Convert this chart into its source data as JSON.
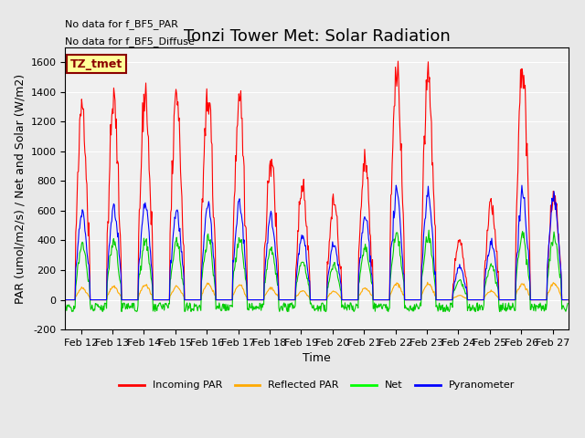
{
  "title": "Tonzi Tower Met: Solar Radiation",
  "xlabel": "Time",
  "ylabel": "PAR (umol/m2/s) / Net and Solar (W/m2)",
  "ylim": [
    -200,
    1700
  ],
  "yticks": [
    -200,
    0,
    200,
    400,
    600,
    800,
    1000,
    1200,
    1400,
    1600
  ],
  "xticklabels": [
    "Feb 12",
    "Feb 13",
    "Feb 14",
    "Feb 15",
    "Feb 16",
    "Feb 17",
    "Feb 18",
    "Feb 19",
    "Feb 20",
    "Feb 21",
    "Feb 22",
    "Feb 23",
    "Feb 24",
    "Feb 25",
    "Feb 26",
    "Feb 27"
  ],
  "annotation_lines": [
    "No data for f_BF5_PAR",
    "No data for f_BF5_Diffuse"
  ],
  "legend_label_box": "TZ_tmet",
  "legend_entries": [
    "Incoming PAR",
    "Reflected PAR",
    "Net",
    "Pyranometer"
  ],
  "legend_colors": [
    "#ff0000",
    "#ffaa00",
    "#00ff00",
    "#0000ff"
  ],
  "line_colors": {
    "incoming_par": "#ff0000",
    "reflected_par": "#ffaa00",
    "net": "#00cc00",
    "pyranometer": "#0000ff"
  },
  "background_color": "#e8e8e8",
  "plot_bg_color": "#f0f0f0",
  "n_days": 16,
  "peak_heights_par": [
    1330,
    1350,
    1400,
    1390,
    1410,
    1400,
    960,
    750,
    660,
    940,
    1560,
    1560,
    400,
    650,
    1590,
    700
  ],
  "peak_heights_pyranometer": [
    600,
    620,
    640,
    600,
    650,
    640,
    560,
    430,
    380,
    560,
    710,
    700,
    220,
    380,
    720,
    700
  ],
  "peak_heights_net": [
    370,
    390,
    400,
    380,
    410,
    400,
    340,
    260,
    230,
    340,
    430,
    420,
    130,
    230,
    440,
    430
  ],
  "peak_heights_reflected": [
    80,
    90,
    100,
    90,
    110,
    100,
    80,
    60,
    55,
    80,
    110,
    110,
    30,
    60,
    110,
    110
  ],
  "title_fontsize": 13,
  "label_fontsize": 9,
  "tick_fontsize": 8
}
